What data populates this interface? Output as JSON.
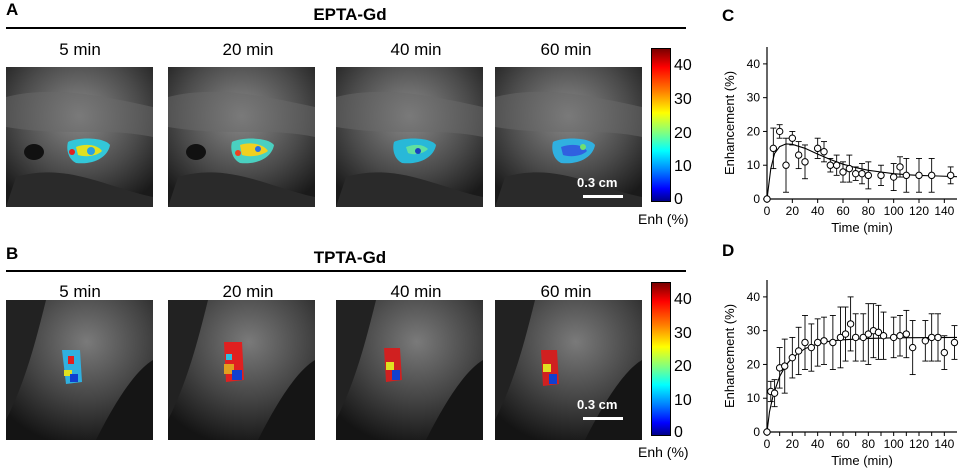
{
  "panels": {
    "A": {
      "letter": "A",
      "title": "EPTA-Gd",
      "times": [
        "5 min",
        "20 min",
        "40 min",
        "60 min"
      ],
      "scale_bar": "0.3 cm",
      "colorbar": {
        "ticks": [
          "40",
          "30",
          "20",
          "10",
          "0"
        ],
        "label": "Enh (%)"
      }
    },
    "B": {
      "letter": "B",
      "title": "TPTA-Gd",
      "times": [
        "5 min",
        "20 min",
        "40 min",
        "60 min"
      ],
      "scale_bar": "0.3 cm",
      "colorbar": {
        "ticks": [
          "40",
          "30",
          "20",
          "10",
          "0"
        ],
        "label": "Enh (%)"
      }
    },
    "C": {
      "letter": "C"
    },
    "D": {
      "letter": "D"
    }
  },
  "colors": {
    "map_high": "#c00000",
    "map_low": "#0000c0",
    "line": "#000000"
  },
  "chart_data": [
    {
      "id": "C",
      "type": "scatter",
      "xlabel": "Time (min)",
      "ylabel": "Enhancement (%)",
      "xlim": [
        0,
        150
      ],
      "ylim": [
        0,
        45
      ],
      "xticks": [
        0,
        20,
        40,
        60,
        80,
        100,
        120,
        140
      ],
      "yticks": [
        0,
        10,
        20,
        30,
        40
      ],
      "points": [
        {
          "x": 0,
          "y": 0,
          "err": 0
        },
        {
          "x": 5,
          "y": 15,
          "err": 6
        },
        {
          "x": 10,
          "y": 20,
          "err": 2
        },
        {
          "x": 15,
          "y": 10,
          "err": 8
        },
        {
          "x": 20,
          "y": 18,
          "err": 2
        },
        {
          "x": 25,
          "y": 13,
          "err": 4
        },
        {
          "x": 30,
          "y": 11,
          "err": 5
        },
        {
          "x": 40,
          "y": 15,
          "err": 3
        },
        {
          "x": 45,
          "y": 14,
          "err": 3
        },
        {
          "x": 50,
          "y": 10,
          "err": 2
        },
        {
          "x": 55,
          "y": 10,
          "err": 3
        },
        {
          "x": 60,
          "y": 8,
          "err": 3
        },
        {
          "x": 65,
          "y": 9,
          "err": 4
        },
        {
          "x": 70,
          "y": 7.5,
          "err": 2
        },
        {
          "x": 75,
          "y": 7.5,
          "err": 3
        },
        {
          "x": 80,
          "y": 7,
          "err": 4
        },
        {
          "x": 90,
          "y": 7,
          "err": 3
        },
        {
          "x": 100,
          "y": 6.5,
          "err": 4
        },
        {
          "x": 105,
          "y": 9.5,
          "err": 3
        },
        {
          "x": 110,
          "y": 7,
          "err": 5
        },
        {
          "x": 120,
          "y": 7,
          "err": 5
        },
        {
          "x": 130,
          "y": 7,
          "err": 5
        },
        {
          "x": 145,
          "y": 7,
          "err": 2.5
        }
      ],
      "fit": [
        [
          0,
          0
        ],
        [
          3,
          9
        ],
        [
          6,
          13.5
        ],
        [
          10,
          15.5
        ],
        [
          15,
          16.3
        ],
        [
          20,
          16.2
        ],
        [
          30,
          15
        ],
        [
          40,
          13.3
        ],
        [
          50,
          11.7
        ],
        [
          60,
          10.3
        ],
        [
          70,
          9.3
        ],
        [
          80,
          8.5
        ],
        [
          90,
          8
        ],
        [
          100,
          7.5
        ],
        [
          110,
          7.2
        ],
        [
          120,
          7
        ],
        [
          135,
          6.8
        ],
        [
          150,
          6.6
        ]
      ]
    },
    {
      "id": "D",
      "type": "scatter",
      "xlabel": "Time (min)",
      "ylabel": "Enhancement (%)",
      "xlim": [
        0,
        150
      ],
      "ylim": [
        0,
        45
      ],
      "xticks": [
        0,
        10,
        20,
        30,
        40,
        50,
        60,
        70,
        80,
        90,
        100,
        110,
        120,
        130,
        140
      ],
      "yticks": [
        0,
        10,
        20,
        30,
        40
      ],
      "points": [
        {
          "x": 0,
          "y": 0,
          "err": 0
        },
        {
          "x": 3,
          "y": 12,
          "err": 3
        },
        {
          "x": 6,
          "y": 11.5,
          "err": 4
        },
        {
          "x": 10,
          "y": 19,
          "err": 6
        },
        {
          "x": 14,
          "y": 19.5,
          "err": 8
        },
        {
          "x": 20,
          "y": 22,
          "err": 6
        },
        {
          "x": 25,
          "y": 24,
          "err": 7
        },
        {
          "x": 30,
          "y": 26.5,
          "err": 8
        },
        {
          "x": 35,
          "y": 25,
          "err": 7
        },
        {
          "x": 40,
          "y": 26.5,
          "err": 7
        },
        {
          "x": 45,
          "y": 27,
          "err": 7
        },
        {
          "x": 52,
          "y": 26.5,
          "err": 8
        },
        {
          "x": 58,
          "y": 28,
          "err": 9
        },
        {
          "x": 62,
          "y": 29,
          "err": 8
        },
        {
          "x": 66,
          "y": 32,
          "err": 8
        },
        {
          "x": 70,
          "y": 28,
          "err": 7
        },
        {
          "x": 76,
          "y": 28,
          "err": 7
        },
        {
          "x": 80,
          "y": 29,
          "err": 9
        },
        {
          "x": 84,
          "y": 30,
          "err": 8
        },
        {
          "x": 88,
          "y": 29.5,
          "err": 8
        },
        {
          "x": 92,
          "y": 28.5,
          "err": 7
        },
        {
          "x": 100,
          "y": 28,
          "err": 6
        },
        {
          "x": 105,
          "y": 28.5,
          "err": 6
        },
        {
          "x": 110,
          "y": 29,
          "err": 7
        },
        {
          "x": 115,
          "y": 25,
          "err": 8
        },
        {
          "x": 125,
          "y": 27,
          "err": 6
        },
        {
          "x": 130,
          "y": 28,
          "err": 7
        },
        {
          "x": 135,
          "y": 28,
          "err": 7
        },
        {
          "x": 140,
          "y": 23.5,
          "err": 5
        },
        {
          "x": 148,
          "y": 26.5,
          "err": 5
        }
      ],
      "fit": [
        [
          0,
          0
        ],
        [
          2,
          6
        ],
        [
          5,
          11
        ],
        [
          10,
          16.5
        ],
        [
          15,
          19.8
        ],
        [
          20,
          22
        ],
        [
          30,
          24.7
        ],
        [
          40,
          26.1
        ],
        [
          50,
          26.9
        ],
        [
          60,
          27.3
        ],
        [
          80,
          27.7
        ],
        [
          100,
          27.9
        ],
        [
          150,
          28
        ]
      ]
    }
  ]
}
